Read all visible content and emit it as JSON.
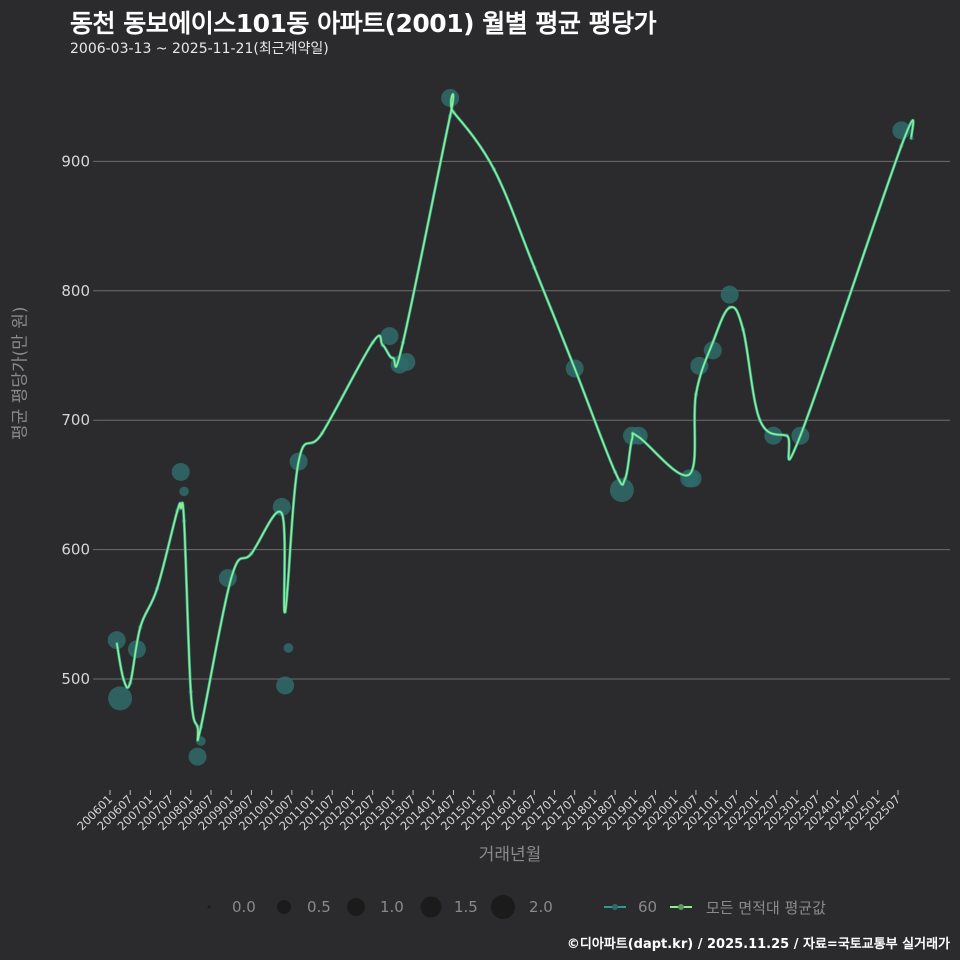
{
  "header": {
    "title": "동천 동보에이스101동 아파트(2001) 월별 평균 평당가",
    "subtitle": "2006-03-13 ~ 2025-11-21(최근계약일)"
  },
  "axes": {
    "ylabel": "평균 평당가(만 원)",
    "xlabel": "거래년월"
  },
  "legend": {
    "size_title": "",
    "sizes": [
      "0.0",
      "0.5",
      "1.0",
      "1.5",
      "2.0"
    ],
    "series_60": "60",
    "series_avg": "모든 면적대 평균값"
  },
  "caption": "©디아파트(dapt.kr) / 2025.11.25 / 자료=국토교통부 실거래가",
  "colors": {
    "background": "#2b2b2d",
    "grid": "#6e6e6e",
    "series_60": "#2a9d8f",
    "series_avg": "#90ee90",
    "points": "#2f6b69"
  },
  "chart_data": {
    "type": "line",
    "title": "동천 동보에이스101동 아파트(2001) 월별 평균 평당가",
    "subtitle": "2006-03-13 ~ 2025-11-21(최근계약일)",
    "xlabel": "거래년월",
    "ylabel": "평균 평당가(만 원)",
    "ylim": [
      415,
      960
    ],
    "yticks": [
      500,
      600,
      700,
      800,
      900
    ],
    "grid": true,
    "legend_position": "bottom",
    "categories": [
      "200601",
      "200607",
      "200701",
      "200707",
      "200801",
      "200807",
      "200901",
      "200907",
      "201001",
      "201007",
      "201101",
      "201107",
      "201201",
      "201207",
      "201301",
      "201307",
      "201401",
      "201407",
      "201501",
      "201507",
      "201601",
      "201607",
      "201701",
      "201707",
      "201801",
      "201807",
      "201901",
      "201907",
      "202001",
      "202007",
      "202101",
      "202107",
      "202201",
      "202207",
      "202301",
      "202307",
      "202401",
      "202407",
      "202501",
      "202507"
    ],
    "series": [
      {
        "name": "60 (거래 포인트)",
        "points": [
          {
            "x": "200603",
            "y": 530,
            "size": 1.0
          },
          {
            "x": "200604",
            "y": 485,
            "size": 1.5
          },
          {
            "x": "200609",
            "y": 523,
            "size": 1.0
          },
          {
            "x": "200710",
            "y": 660,
            "size": 1.0
          },
          {
            "x": "200711",
            "y": 645,
            "size": 0.3
          },
          {
            "x": "200803",
            "y": 440,
            "size": 1.0
          },
          {
            "x": "200804",
            "y": 452,
            "size": 0.3
          },
          {
            "x": "200812",
            "y": 578,
            "size": 1.0
          },
          {
            "x": "201004",
            "y": 633,
            "size": 1.0
          },
          {
            "x": "201005",
            "y": 495,
            "size": 1.0
          },
          {
            "x": "201006",
            "y": 524,
            "size": 0.3
          },
          {
            "x": "201009",
            "y": 668,
            "size": 1.0
          },
          {
            "x": "201212",
            "y": 765,
            "size": 1.0
          },
          {
            "x": "201303",
            "y": 743,
            "size": 1.0
          },
          {
            "x": "201305",
            "y": 745,
            "size": 1.0
          },
          {
            "x": "201406",
            "y": 949,
            "size": 1.0
          },
          {
            "x": "201707",
            "y": 740,
            "size": 1.0
          },
          {
            "x": "201809",
            "y": 646,
            "size": 1.5
          },
          {
            "x": "201812",
            "y": 688,
            "size": 1.0
          },
          {
            "x": "201902",
            "y": 688,
            "size": 1.0
          },
          {
            "x": "202005",
            "y": 655,
            "size": 1.0
          },
          {
            "x": "202006",
            "y": 655,
            "size": 1.0
          },
          {
            "x": "202008",
            "y": 742,
            "size": 1.0
          },
          {
            "x": "202012",
            "y": 754,
            "size": 1.0
          },
          {
            "x": "202105",
            "y": 797,
            "size": 1.0
          },
          {
            "x": "202206",
            "y": 688,
            "size": 1.0
          },
          {
            "x": "202302",
            "y": 688,
            "size": 1.0
          },
          {
            "x": "202508",
            "y": 924,
            "size": 1.0
          }
        ]
      },
      {
        "name": "모든 면적대 평균값",
        "x": [
          "200603",
          "200605",
          "200607",
          "200610",
          "200703",
          "200709",
          "200710",
          "200711",
          "200801",
          "200803",
          "200804",
          "200901",
          "200907",
          "201004",
          "201005",
          "201009",
          "201104",
          "201207",
          "201210",
          "201301",
          "201304",
          "201406",
          "201407",
          "201507",
          "201607",
          "201707",
          "201807",
          "201810",
          "201812",
          "201902",
          "202005",
          "202007",
          "202012",
          "202105",
          "202109",
          "202202",
          "202210",
          "202302",
          "202508",
          "202511"
        ],
        "values": [
          528,
          500,
          497,
          540,
          570,
          630,
          632,
          622,
          490,
          463,
          463,
          578,
          597,
          628,
          552,
          668,
          690,
          760,
          758,
          748,
          760,
          935,
          938,
          894,
          818,
          740,
          660,
          655,
          685,
          687,
          658,
          720,
          760,
          787,
          770,
          700,
          688,
          688,
          912,
          918
        ]
      }
    ]
  }
}
